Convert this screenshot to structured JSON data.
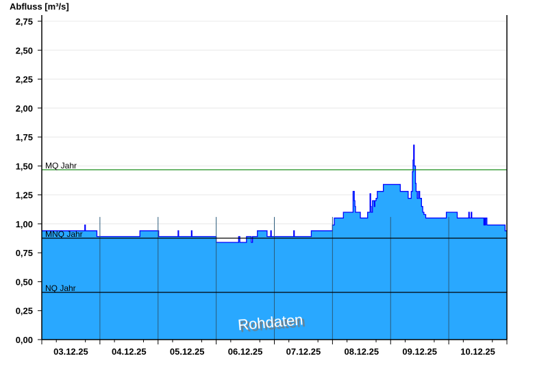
{
  "chart_data": {
    "type": "area",
    "ylabel": "Abfluss [m³/s]",
    "ylim": [
      0,
      2.75
    ],
    "yticks": [
      "0,00",
      "0,25",
      "0,50",
      "0,75",
      "1,00",
      "1,25",
      "1,50",
      "1,75",
      "2,00",
      "2,25",
      "2,50",
      "2,75"
    ],
    "xlim": [
      "2025-12-03T00:00",
      "2025-12-11T00:00"
    ],
    "xticks": [
      "03.12.25",
      "04.12.25",
      "05.12.25",
      "06.12.25",
      "07.12.25",
      "08.12.25",
      "09.12.25",
      "10.12.25"
    ],
    "grid": true,
    "watermark": "Rohdaten",
    "colors": {
      "fill": "#29a8ff",
      "line": "#0000ff",
      "mq": "#008000",
      "mnq": "#000000",
      "nq": "#000000",
      "daylines": "#2a5a7a"
    },
    "reference_lines": [
      {
        "label": "MQ Jahr",
        "value": 1.467
      },
      {
        "label": "MNQ Jahr",
        "value": 0.876
      },
      {
        "label": "NQ Jahr",
        "value": 0.408
      }
    ],
    "series": [
      {
        "points": [
          [
            "2025-12-03T00:00",
            0.94
          ],
          [
            "2025-12-03T17:45",
            0.99
          ],
          [
            "2025-12-03T18:00",
            0.94
          ],
          [
            "2025-12-03T22:45",
            0.89
          ],
          [
            "2025-12-04T16:30",
            0.94
          ],
          [
            "2025-12-05T00:15",
            0.89
          ],
          [
            "2025-12-05T08:15",
            0.94
          ],
          [
            "2025-12-05T08:30",
            0.89
          ],
          [
            "2025-12-05T13:45",
            0.94
          ],
          [
            "2025-12-05T14:00",
            0.89
          ],
          [
            "2025-12-06T00:00",
            0.84
          ],
          [
            "2025-12-06T09:15",
            0.89
          ],
          [
            "2025-12-06T09:45",
            0.84
          ],
          [
            "2025-12-06T12:30",
            0.89
          ],
          [
            "2025-12-06T14:30",
            0.84
          ],
          [
            "2025-12-06T15:00",
            0.89
          ],
          [
            "2025-12-06T17:00",
            0.94
          ],
          [
            "2025-12-06T21:00",
            0.89
          ],
          [
            "2025-12-06T22:30",
            0.94
          ],
          [
            "2025-12-06T22:45",
            0.89
          ],
          [
            "2025-12-07T08:00",
            0.94
          ],
          [
            "2025-12-07T08:15",
            0.89
          ],
          [
            "2025-12-07T15:15",
            0.94
          ],
          [
            "2025-12-08T00:00",
            0.99
          ],
          [
            "2025-12-08T00:45",
            1.05
          ],
          [
            "2025-12-08T04:30",
            1.1
          ],
          [
            "2025-12-08T08:30",
            1.28
          ],
          [
            "2025-12-08T09:00",
            1.2
          ],
          [
            "2025-12-08T09:15",
            1.15
          ],
          [
            "2025-12-08T09:30",
            1.1
          ],
          [
            "2025-12-08T11:30",
            1.05
          ],
          [
            "2025-12-08T14:30",
            1.1
          ],
          [
            "2025-12-08T15:30",
            1.26
          ],
          [
            "2025-12-08T15:45",
            1.15
          ],
          [
            "2025-12-08T16:00",
            1.1
          ],
          [
            "2025-12-08T16:30",
            1.2
          ],
          [
            "2025-12-08T17:15",
            1.15
          ],
          [
            "2025-12-08T17:30",
            1.2
          ],
          [
            "2025-12-08T18:00",
            1.22
          ],
          [
            "2025-12-08T18:30",
            1.28
          ],
          [
            "2025-12-08T21:00",
            1.34
          ],
          [
            "2025-12-09T04:00",
            1.28
          ],
          [
            "2025-12-09T07:15",
            1.22
          ],
          [
            "2025-12-09T08:30",
            1.28
          ],
          [
            "2025-12-09T09:00",
            1.45
          ],
          [
            "2025-12-09T09:15",
            1.55
          ],
          [
            "2025-12-09T09:30",
            1.68
          ],
          [
            "2025-12-09T09:45",
            1.5
          ],
          [
            "2025-12-09T10:15",
            1.35
          ],
          [
            "2025-12-09T10:30",
            1.28
          ],
          [
            "2025-12-09T11:00",
            1.22
          ],
          [
            "2025-12-09T11:30",
            1.28
          ],
          [
            "2025-12-09T12:00",
            1.22
          ],
          [
            "2025-12-09T12:45",
            1.15
          ],
          [
            "2025-12-09T13:15",
            1.1
          ],
          [
            "2025-12-09T13:45",
            1.08
          ],
          [
            "2025-12-09T14:30",
            1.05
          ],
          [
            "2025-12-09T23:00",
            1.1
          ],
          [
            "2025-12-10T03:30",
            1.05
          ],
          [
            "2025-12-10T08:15",
            1.1
          ],
          [
            "2025-12-10T08:30",
            1.05
          ],
          [
            "2025-12-10T09:15",
            1.1
          ],
          [
            "2025-12-10T09:30",
            1.05
          ],
          [
            "2025-12-10T14:30",
            0.99
          ],
          [
            "2025-12-10T14:45",
            1.05
          ],
          [
            "2025-12-10T15:00",
            0.99
          ],
          [
            "2025-12-10T15:15",
            1.05
          ],
          [
            "2025-12-10T15:45",
            0.99
          ],
          [
            "2025-12-10T23:15",
            0.94
          ]
        ]
      }
    ]
  }
}
